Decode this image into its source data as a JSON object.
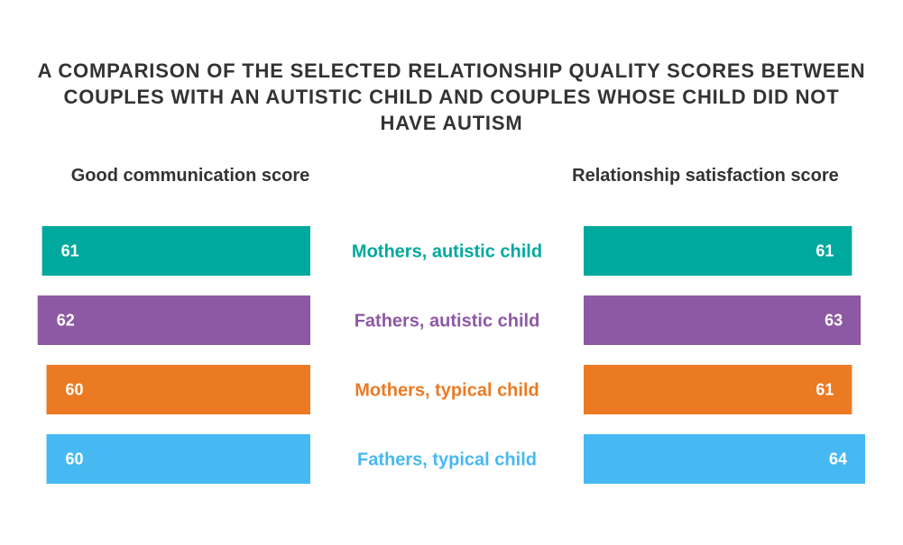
{
  "title": "A COMPARISON OF THE SELECTED RELATIONSHIP QUALITY SCORES BETWEEN COUPLES WITH AN AUTISTIC CHILD AND COUPLES WHOSE CHILD DID NOT HAVE AUTISM",
  "chart_data": {
    "type": "bar",
    "orientation": "horizontal-mirrored",
    "categories": [
      "Mothers, autistic child",
      "Fathers, autistic child",
      "Mothers, typical child",
      "Fathers, typical child"
    ],
    "colors": [
      "#00a99d",
      "#8e59a4",
      "#ec7a22",
      "#46b9f2"
    ],
    "series": [
      {
        "name": "Good communication score",
        "values": [
          61,
          62,
          60,
          60
        ],
        "side": "left"
      },
      {
        "name": "Relationship satisfaction score",
        "values": [
          61,
          63,
          61,
          64
        ],
        "side": "right"
      }
    ],
    "data_labels": true,
    "axes_shown": false,
    "grid": false
  }
}
